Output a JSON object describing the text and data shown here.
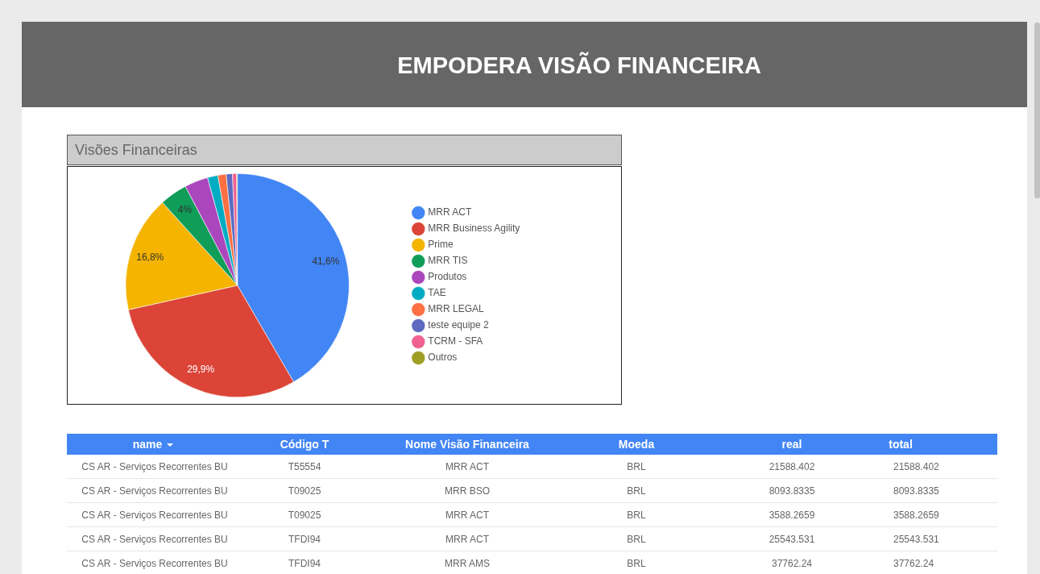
{
  "chart_data": [
    {
      "type": "other",
      "title": "EMPODERA VISÃO FINANCEIRA"
    },
    {
      "type": "pie",
      "title": "Visões Financeiras",
      "categories": [
        "MRR ACT",
        "MRR Business Agility",
        "Prime",
        "MRR TIS",
        "Produtos",
        "TAE",
        "MRR LEGAL",
        "teste equipe 2",
        "TCRM - SFA",
        "Outros"
      ],
      "values": [
        41.6,
        29.9,
        16.8,
        4,
        3.4,
        1.5,
        1.2,
        0.9,
        0.6,
        0.1
      ],
      "colors": [
        "#4285f4",
        "#db4437",
        "#f4b400",
        "#0f9d58",
        "#ab47bc",
        "#00acc1",
        "#ff7043",
        "#5c6bc0",
        "#f06292",
        "#9e9d24"
      ],
      "value_labels": [
        "41,6%",
        "29,9%",
        "16,8%",
        "4%",
        null,
        null,
        null,
        null,
        null,
        null
      ],
      "legend": "right"
    },
    {
      "type": "other",
      "categories": [
        "name",
        "Código T",
        "Nome Visão Financeira",
        "Moeda",
        "real",
        "total"
      ],
      "cell_labels": [
        [
          "CS AR - Serviços Recorrentes BU",
          "T55554",
          "MRR ACT",
          "BRL",
          "21588.402",
          "21588.402"
        ],
        [
          "CS AR - Serviços Recorrentes BU",
          "T09025",
          "MRR BSO",
          "BRL",
          "8093.8335",
          "8093.8335"
        ],
        [
          "CS AR - Serviços Recorrentes BU",
          "T09025",
          "MRR ACT",
          "BRL",
          "3588.2659",
          "3588.2659"
        ],
        [
          "CS AR - Serviços Recorrentes BU",
          "TFDI94",
          "MRR ACT",
          "BRL",
          "25543.531",
          "25543.531"
        ],
        [
          "CS AR - Serviços Recorrentes BU",
          "TFDI94",
          "MRR AMS",
          "BRL",
          "37762.24",
          "37762.24"
        ]
      ]
    }
  ]
}
